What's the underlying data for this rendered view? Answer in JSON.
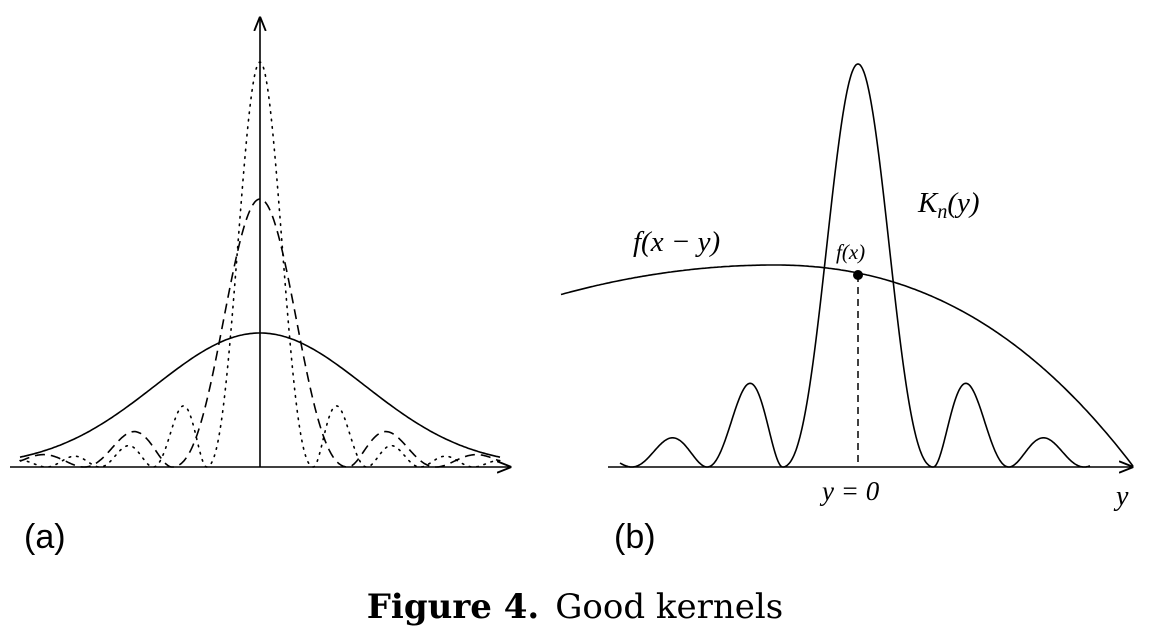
{
  "panel_a": {
    "label": "(a)"
  },
  "panel_b": {
    "label": "(b)",
    "f_label": "f(x − y)",
    "k_label_base": "K",
    "k_label_sub": "n",
    "k_label_arg": "(y)",
    "point_label": "f(x)",
    "y0_label": "y = 0",
    "y_axis_label": "y"
  },
  "caption": {
    "prefix": "Figure 4.",
    "text": "Good kernels"
  }
}
